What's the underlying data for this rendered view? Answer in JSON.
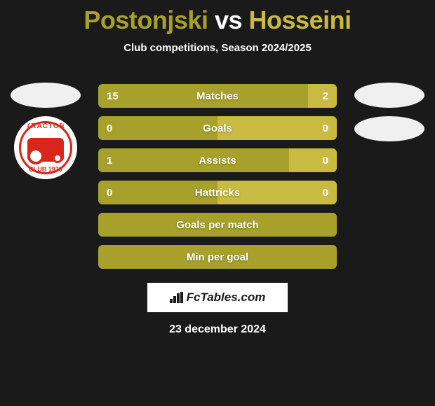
{
  "colors": {
    "background": "#1a1a1a",
    "text_white": "#ffffff",
    "player1": "#a7a02b",
    "player2": "#c9ba42",
    "title_player1": "#a7a02b",
    "title_vs": "#ffffff",
    "title_player2": "#c9ba42",
    "track_fallback": "#a7a02b",
    "watermark_bg": "#ffffff",
    "watermark_text": "#1a1a1a",
    "logo_red": "#d9261c"
  },
  "title": {
    "player1": "Postonjski",
    "vs": "vs",
    "player2": "Hosseini",
    "fontsize": 36
  },
  "subtitle": "Club competitions, Season 2024/2025",
  "left_club": {
    "name": "Tractor",
    "top_text": "TRACTOR",
    "bottom_text": "CLUB 1970"
  },
  "stats": [
    {
      "label": "Matches",
      "left_val": "15",
      "right_val": "2",
      "left_pct": 88,
      "right_pct": 12,
      "show_vals": true
    },
    {
      "label": "Goals",
      "left_val": "0",
      "right_val": "0",
      "left_pct": 50,
      "right_pct": 50,
      "show_vals": true
    },
    {
      "label": "Assists",
      "left_val": "1",
      "right_val": "0",
      "left_pct": 80,
      "right_pct": 20,
      "show_vals": true
    },
    {
      "label": "Hattricks",
      "left_val": "0",
      "right_val": "0",
      "left_pct": 50,
      "right_pct": 50,
      "show_vals": true
    },
    {
      "label": "Goals per match",
      "left_val": "",
      "right_val": "",
      "left_pct": 100,
      "right_pct": 0,
      "show_vals": false
    },
    {
      "label": "Min per goal",
      "left_val": "",
      "right_val": "",
      "left_pct": 100,
      "right_pct": 0,
      "show_vals": false
    }
  ],
  "bar_style": {
    "height": 34,
    "gap": 12,
    "border_radius": 6,
    "label_fontsize": 15
  },
  "watermark": "FcTables.com",
  "date": "23 december 2024"
}
